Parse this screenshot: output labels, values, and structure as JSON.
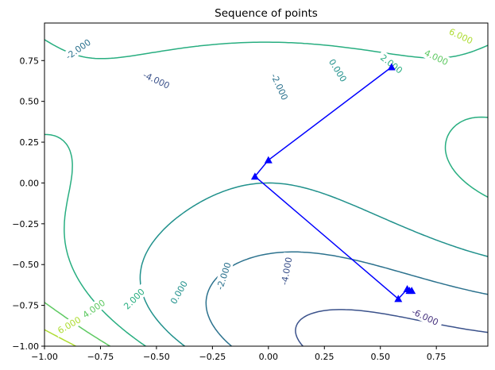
{
  "chart_data": {
    "type": "contour",
    "title": "Sequence of points",
    "xlabel": "",
    "ylabel": "",
    "xlim": [
      -1.0,
      0.98
    ],
    "ylim": [
      -1.0,
      0.98
    ],
    "x_ticks": [
      "−1.00",
      "−0.75",
      "−0.50",
      "−0.25",
      "0.00",
      "0.25",
      "0.50",
      "0.75"
    ],
    "x_tick_values": [
      -1.0,
      -0.75,
      -0.5,
      -0.25,
      0.0,
      0.25,
      0.5,
      0.75
    ],
    "y_ticks": [
      "−1.00",
      "−0.75",
      "−0.50",
      "−0.25",
      "0.00",
      "0.25",
      "0.50",
      "0.75"
    ],
    "y_tick_values": [
      -1.0,
      -0.75,
      -0.5,
      -0.25,
      0.0,
      0.25,
      0.5,
      0.75
    ],
    "grid": false,
    "contour_levels": [
      {
        "level": -6,
        "label": "-6.000",
        "color": "#46327e"
      },
      {
        "level": -4,
        "label": "-4.000",
        "color": "#3b528b"
      },
      {
        "level": -2,
        "label": "-2.000",
        "color": "#2c728e"
      },
      {
        "level": 0,
        "label": "0.000",
        "color": "#21918c"
      },
      {
        "level": 2,
        "label": "2.000",
        "color": "#28ae80"
      },
      {
        "level": 4,
        "label": "4.000",
        "color": "#5ec962"
      },
      {
        "level": 6,
        "label": "6.000",
        "color": "#addc30"
      },
      {
        "level": 8,
        "label": "",
        "color": "#d0e11c"
      }
    ],
    "contour_labels": [
      {
        "text": "-2.000",
        "x": -0.85,
        "y": 0.82,
        "rot": -35,
        "level": -2
      },
      {
        "text": "-4.000",
        "x": -0.5,
        "y": 0.63,
        "rot": 25,
        "level": -4
      },
      {
        "text": "0.000",
        "x": 0.31,
        "y": 0.69,
        "rot": 58,
        "level": 0
      },
      {
        "text": "-2.000",
        "x": 0.05,
        "y": 0.59,
        "rot": 65,
        "level": -2
      },
      {
        "text": "2.000",
        "x": 0.55,
        "y": 0.73,
        "rot": 38,
        "level": 2
      },
      {
        "text": "4.000",
        "x": 0.75,
        "y": 0.77,
        "rot": 25,
        "level": 4
      },
      {
        "text": "6.000",
        "x": 0.86,
        "y": 0.9,
        "rot": 25,
        "level": 6
      },
      {
        "text": "-2.000",
        "x": -0.2,
        "y": -0.57,
        "rot": -72,
        "level": -2
      },
      {
        "text": "-4.000",
        "x": 0.08,
        "y": -0.54,
        "rot": -80,
        "level": -4
      },
      {
        "text": "0.000",
        "x": -0.4,
        "y": -0.67,
        "rot": -60,
        "level": 0
      },
      {
        "text": "2.000",
        "x": -0.6,
        "y": -0.71,
        "rot": -45,
        "level": 2
      },
      {
        "text": "4.000",
        "x": -0.78,
        "y": -0.77,
        "rot": -35,
        "level": 4
      },
      {
        "text": "6.000",
        "x": -0.89,
        "y": -0.87,
        "rot": -30,
        "level": 6
      },
      {
        "text": "-6.000",
        "x": 0.7,
        "y": -0.82,
        "rot": 25,
        "level": -6
      }
    ],
    "series": [
      {
        "type": "line",
        "color": "#0000ff",
        "marker": "triangle",
        "x": [
          0.55,
          0.0,
          -0.06,
          0.58,
          0.62,
          0.63,
          0.64
        ],
        "y": [
          0.71,
          0.14,
          0.04,
          -0.71,
          -0.65,
          -0.66,
          -0.66
        ]
      }
    ]
  }
}
